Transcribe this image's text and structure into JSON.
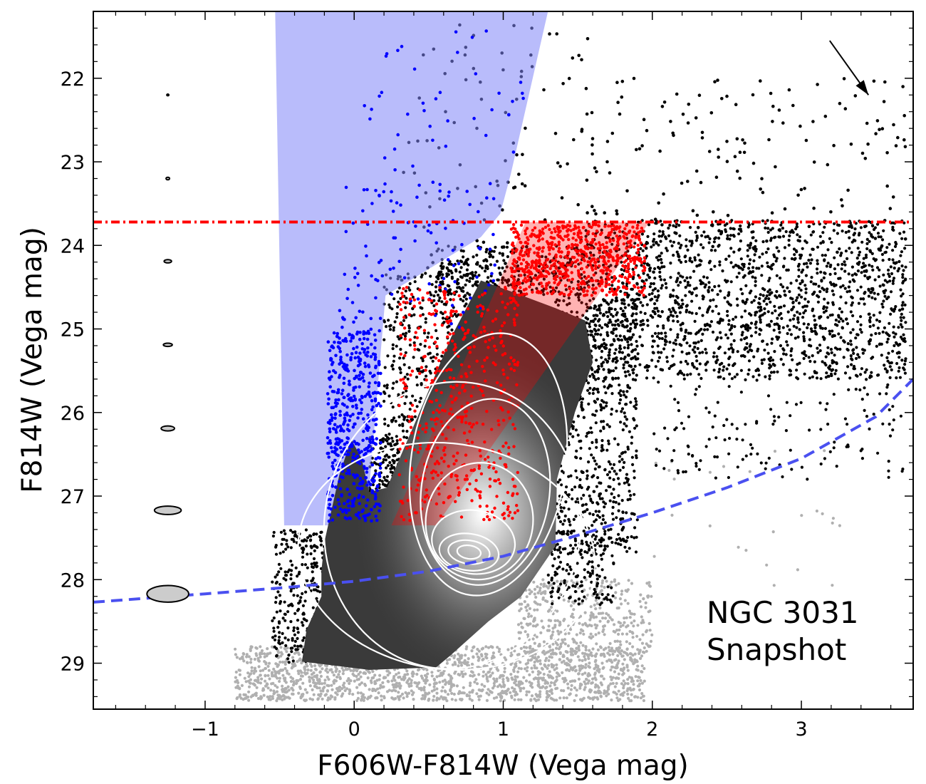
{
  "chart_data": {
    "type": "scatter",
    "title": "",
    "xlabel": "F606W-F814W (Vega mag)",
    "ylabel": "F814W (Vega mag)",
    "xlim": [
      -1.75,
      3.75
    ],
    "ylim": [
      29.55,
      21.2
    ],
    "y_inverted": true,
    "grid": false,
    "legend": "none",
    "x_ticks": [
      {
        "v": -1,
        "label": "−1"
      },
      {
        "v": 0,
        "label": "0"
      },
      {
        "v": 1,
        "label": "1"
      },
      {
        "v": 2,
        "label": "2"
      },
      {
        "v": 3,
        "label": "3"
      }
    ],
    "y_ticks": [
      {
        "v": 22,
        "label": "22"
      },
      {
        "v": 23,
        "label": "23"
      },
      {
        "v": 24,
        "label": "24"
      },
      {
        "v": 25,
        "label": "25"
      },
      {
        "v": 26,
        "label": "26"
      },
      {
        "v": 27,
        "label": "27"
      },
      {
        "v": 28,
        "label": "28"
      },
      {
        "v": 29,
        "label": "29"
      }
    ],
    "annotation": {
      "lines": [
        "NGC 3031",
        "Snapshot"
      ]
    },
    "colors": {
      "black_stars": "#000000",
      "faint_stars": "#b0b0b0",
      "blue_stars": "#0000ff",
      "blue_region": "#7f85f7",
      "red_stars": "#ff0000",
      "red_region": "#ff0000",
      "trgb_line": "#ff0000",
      "completeness_curve": "#4a50f0",
      "density_dark": "#3a3a3a",
      "contours": "#ffffff"
    },
    "trgb_line": {
      "y": 23.72
    },
    "completeness_curve": [
      {
        "x": -1.75,
        "y": 28.27
      },
      {
        "x": -1.0,
        "y": 28.17
      },
      {
        "x": -0.5,
        "y": 28.1
      },
      {
        "x": 0.0,
        "y": 28.02
      },
      {
        "x": 0.5,
        "y": 27.9
      },
      {
        "x": 1.0,
        "y": 27.72
      },
      {
        "x": 1.5,
        "y": 27.47
      },
      {
        "x": 2.0,
        "y": 27.2
      },
      {
        "x": 2.5,
        "y": 26.9
      },
      {
        "x": 3.0,
        "y": 26.55
      },
      {
        "x": 3.5,
        "y": 26.05
      },
      {
        "x": 3.75,
        "y": 25.6
      }
    ],
    "blue_region": [
      {
        "x": -0.53,
        "y": 21.2
      },
      {
        "x": 1.3,
        "y": 21.2
      },
      {
        "x": 1.05,
        "y": 23.15
      },
      {
        "x": 0.98,
        "y": 23.62
      },
      {
        "x": 0.85,
        "y": 23.9
      },
      {
        "x": 0.21,
        "y": 24.6
      },
      {
        "x": 0.08,
        "y": 27.35
      },
      {
        "x": -0.47,
        "y": 27.35
      }
    ],
    "red_region": [
      {
        "x": 1.15,
        "y": 23.72
      },
      {
        "x": 1.98,
        "y": 23.72
      },
      {
        "x": 0.55,
        "y": 27.35
      },
      {
        "x": 0.25,
        "y": 27.35
      }
    ],
    "dark_region": [
      {
        "x": -0.02,
        "y": 26.32
      },
      {
        "x": 0.05,
        "y": 26.55
      },
      {
        "x": 0.1,
        "y": 26.95
      },
      {
        "x": 0.22,
        "y": 26.9
      },
      {
        "x": 0.45,
        "y": 25.95
      },
      {
        "x": 0.65,
        "y": 25.1
      },
      {
        "x": 0.85,
        "y": 24.42
      },
      {
        "x": 1.05,
        "y": 24.55
      },
      {
        "x": 1.35,
        "y": 24.75
      },
      {
        "x": 1.55,
        "y": 24.9
      },
      {
        "x": 1.6,
        "y": 25.4
      },
      {
        "x": 1.48,
        "y": 26.0
      },
      {
        "x": 1.36,
        "y": 26.8
      },
      {
        "x": 1.35,
        "y": 27.6
      },
      {
        "x": 1.12,
        "y": 28.2
      },
      {
        "x": 0.9,
        "y": 28.5
      },
      {
        "x": 0.65,
        "y": 28.9
      },
      {
        "x": 0.55,
        "y": 29.05
      },
      {
        "x": 0.1,
        "y": 29.08
      },
      {
        "x": -0.35,
        "y": 28.98
      },
      {
        "x": -0.32,
        "y": 28.6
      },
      {
        "x": -0.22,
        "y": 28.2
      },
      {
        "x": -0.22,
        "y": 27.9
      },
      {
        "x": -0.2,
        "y": 27.55
      },
      {
        "x": -0.1,
        "y": 26.75
      }
    ],
    "contours": [
      {
        "cx": 0.77,
        "cy": 27.67,
        "rx": 0.08,
        "ry": 0.08,
        "rot": 8
      },
      {
        "cx": 0.77,
        "cy": 27.67,
        "rx": 0.14,
        "ry": 0.14,
        "rot": 8
      },
      {
        "cx": 0.77,
        "cy": 27.67,
        "rx": 0.2,
        "ry": 0.22,
        "rot": 8
      },
      {
        "cx": 0.8,
        "cy": 27.55,
        "rx": 0.28,
        "ry": 0.38,
        "rot": 8
      },
      {
        "cx": 0.84,
        "cy": 27.3,
        "rx": 0.36,
        "ry": 0.7,
        "rot": 8
      },
      {
        "cx": 0.88,
        "cy": 26.95,
        "rx": 0.43,
        "ry": 1.12,
        "rot": 8
      },
      {
        "cx": 0.9,
        "cy": 26.62,
        "rx": 0.52,
        "ry": 1.58,
        "rot": 8
      },
      {
        "cx": 0.66,
        "cy": 27.35,
        "rx": 0.86,
        "ry": 1.72,
        "rot": 8
      },
      {
        "cx": 0.62,
        "cy": 27.72,
        "rx": 1.0,
        "ry": 1.35,
        "rot": 8
      }
    ],
    "error_ellipses": [
      {
        "x": -1.25,
        "y": 22.2,
        "xerr": 0.005,
        "yerr": 0.01
      },
      {
        "x": -1.25,
        "y": 23.2,
        "xerr": 0.012,
        "yerr": 0.015
      },
      {
        "x": -1.25,
        "y": 24.19,
        "xerr": 0.025,
        "yerr": 0.02
      },
      {
        "x": -1.25,
        "y": 25.19,
        "xerr": 0.03,
        "yerr": 0.02
      },
      {
        "x": -1.25,
        "y": 26.19,
        "xerr": 0.045,
        "yerr": 0.03
      },
      {
        "x": -1.25,
        "y": 27.17,
        "xerr": 0.09,
        "yerr": 0.05
      },
      {
        "x": -1.25,
        "y": 28.17,
        "xerr": 0.14,
        "yerr": 0.1
      }
    ],
    "reddening_vector": {
      "x0": 3.19,
      "y0": 21.55,
      "x1": 3.45,
      "y1": 22.2
    },
    "star_groups": [
      {
        "group": "black",
        "x": [
          0.3,
          1.6
        ],
        "y": [
          21.35,
          24.3
        ],
        "n": 90,
        "r": 2.3
      },
      {
        "group": "black",
        "x": [
          1.5,
          3.7
        ],
        "y": [
          22.0,
          24.1
        ],
        "n": 170,
        "r": 2.3
      },
      {
        "group": "black",
        "x": [
          1.55,
          3.7
        ],
        "y": [
          23.7,
          25.6
        ],
        "n": 1600,
        "r": 2.1
      },
      {
        "group": "black",
        "x": [
          2.0,
          3.7
        ],
        "y": [
          24.6,
          26.8
        ],
        "n": 260,
        "r": 2.1
      },
      {
        "group": "black",
        "x": [
          0.55,
          1.55
        ],
        "y": [
          24.0,
          24.6
        ],
        "n": 320,
        "r": 2.1
      },
      {
        "group": "black",
        "x": [
          0.2,
          0.85
        ],
        "y": [
          24.3,
          27.4
        ],
        "n": 650,
        "r": 2.1
      },
      {
        "group": "black",
        "x": [
          1.35,
          1.9
        ],
        "y": [
          24.5,
          27.7
        ],
        "n": 650,
        "r": 2.1
      },
      {
        "group": "black",
        "x": [
          -0.55,
          -0.15
        ],
        "y": [
          27.4,
          29.0
        ],
        "n": 320,
        "r": 2.1
      },
      {
        "group": "black",
        "x": [
          0.1,
          0.3
        ],
        "y": [
          26.3,
          27.6
        ],
        "n": 200,
        "r": 2.1
      },
      {
        "group": "black",
        "x": [
          1.3,
          1.75
        ],
        "y": [
          27.4,
          28.3
        ],
        "n": 170,
        "r": 2.1
      },
      {
        "group": "gray",
        "x": [
          -0.8,
          1.95
        ],
        "y": [
          28.8,
          29.45
        ],
        "n": 1700,
        "r": 2.1
      },
      {
        "group": "gray",
        "x": [
          1.1,
          2.0
        ],
        "y": [
          28.0,
          28.9
        ],
        "n": 400,
        "r": 2.1
      },
      {
        "group": "gray",
        "x": [
          1.9,
          3.3
        ],
        "y": [
          26.4,
          28.1
        ],
        "n": 25,
        "r": 2.1
      },
      {
        "group": "blue",
        "x": [
          -0.18,
          0.18
        ],
        "y": [
          25.0,
          27.3
        ],
        "n": 500,
        "r": 2.3
      },
      {
        "group": "blue",
        "x": [
          -0.12,
          0.95
        ],
        "y": [
          23.2,
          25.0
        ],
        "n": 110,
        "r": 2.3
      },
      {
        "group": "blue",
        "x": [
          0.05,
          1.2
        ],
        "y": [
          21.4,
          23.2
        ],
        "n": 40,
        "r": 2.3
      },
      {
        "group": "red",
        "x": [
          1.05,
          1.95
        ],
        "y": [
          23.75,
          24.6
        ],
        "n": 650,
        "r": 2.2
      },
      {
        "group": "red",
        "x": [
          0.3,
          1.1
        ],
        "y": [
          24.5,
          27.3
        ],
        "n": 500,
        "r": 2.2
      }
    ]
  }
}
